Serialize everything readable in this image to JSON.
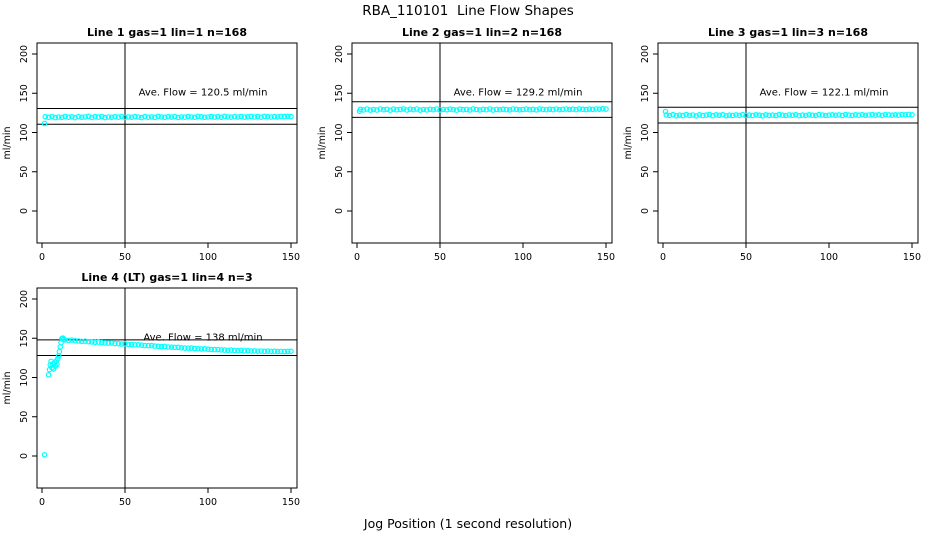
{
  "page": {
    "title": "RBA_110101  Line Flow Shapes",
    "xlabel": "Jog Position (1 second resolution)"
  },
  "colors": {
    "point": "#00ffff",
    "line": "#000000",
    "background": "#ffffff"
  },
  "axes": {
    "x_ticks": [
      0,
      50,
      100,
      150
    ],
    "y_ticks": [
      0,
      50,
      100,
      150,
      200
    ],
    "ylabel": "ml/min",
    "xlim": [
      0,
      150
    ],
    "ylim": [
      0,
      200
    ],
    "grid": false
  },
  "chart_data": [
    {
      "type": "scatter",
      "title": "Line 1 gas=1 lin=1 n=168",
      "annotation": "Ave. Flow =  120.5  ml/min",
      "avg_flow": 120.5,
      "upper_line": 130.5,
      "lower_line": 110.5,
      "vline_x": 50,
      "row": 0,
      "col": 0,
      "points": [
        [
          1.5,
          111.5
        ],
        [
          2,
          120.1
        ],
        [
          4,
          119.3
        ],
        [
          6,
          120.4
        ],
        [
          8,
          119.0
        ],
        [
          10,
          119.8
        ],
        [
          12,
          119.2
        ],
        [
          14,
          120.5
        ],
        [
          16,
          119.5
        ],
        [
          18,
          120.0
        ],
        [
          20,
          118.9
        ],
        [
          22,
          120.3
        ],
        [
          24,
          119.4
        ],
        [
          26,
          119.9
        ],
        [
          28,
          120.6
        ],
        [
          30,
          119.1
        ],
        [
          32,
          120.2
        ],
        [
          34,
          119.6
        ],
        [
          36,
          120.4
        ],
        [
          38,
          119.0
        ],
        [
          40,
          119.8
        ],
        [
          42,
          119.3
        ],
        [
          44,
          120.1
        ],
        [
          46,
          119.5
        ],
        [
          48,
          120.5
        ],
        [
          50,
          119.2
        ],
        [
          52,
          119.9
        ],
        [
          54,
          119.4
        ],
        [
          56,
          120.3
        ],
        [
          58,
          119.7
        ],
        [
          60,
          119.0
        ],
        [
          62,
          120.2
        ],
        [
          64,
          119.5
        ],
        [
          66,
          119.9
        ],
        [
          68,
          119.2
        ],
        [
          70,
          120.6
        ],
        [
          72,
          119.8
        ],
        [
          74,
          119.3
        ],
        [
          76,
          120.1
        ],
        [
          78,
          119.6
        ],
        [
          80,
          120.4
        ],
        [
          82,
          119.1
        ],
        [
          84,
          119.9
        ],
        [
          86,
          119.5
        ],
        [
          88,
          120.2
        ],
        [
          90,
          119.7
        ],
        [
          92,
          119.3
        ],
        [
          94,
          120.5
        ],
        [
          96,
          120.0
        ],
        [
          98,
          119.4
        ],
        [
          100,
          119.8
        ],
        [
          102,
          120.3
        ],
        [
          104,
          119.6
        ],
        [
          106,
          120.1
        ],
        [
          108,
          119.3
        ],
        [
          110,
          120.6
        ],
        [
          112,
          119.9
        ],
        [
          114,
          119.5
        ],
        [
          116,
          120.2
        ],
        [
          118,
          119.7
        ],
        [
          120,
          120.4
        ],
        [
          122,
          119.6
        ],
        [
          124,
          120.0
        ],
        [
          126,
          120.5
        ],
        [
          128,
          119.8
        ],
        [
          130,
          120.2
        ],
        [
          132,
          119.5
        ],
        [
          134,
          120.6
        ],
        [
          136,
          120.1
        ],
        [
          138,
          119.7
        ],
        [
          140,
          120.3
        ],
        [
          142,
          119.9
        ],
        [
          144,
          120.5
        ],
        [
          146,
          120.2
        ],
        [
          148,
          120.7
        ],
        [
          150,
          120.3
        ]
      ]
    },
    {
      "type": "scatter",
      "title": "Line 2 gas=1 lin=2 n=168",
      "annotation": "Ave. Flow =  129.2  ml/min",
      "avg_flow": 129.2,
      "upper_line": 139.2,
      "lower_line": 119.2,
      "vline_x": 50,
      "row": 0,
      "col": 1,
      "points": [
        [
          1.5,
          127.0
        ],
        [
          2,
          129.6
        ],
        [
          4,
          128.8
        ],
        [
          6,
          129.9
        ],
        [
          8,
          128.5
        ],
        [
          10,
          129.3
        ],
        [
          12,
          128.7
        ],
        [
          14,
          130.0
        ],
        [
          16,
          129.0
        ],
        [
          18,
          129.5
        ],
        [
          20,
          128.4
        ],
        [
          22,
          129.8
        ],
        [
          24,
          128.9
        ],
        [
          26,
          129.4
        ],
        [
          28,
          130.1
        ],
        [
          30,
          128.6
        ],
        [
          32,
          129.7
        ],
        [
          34,
          129.1
        ],
        [
          36,
          129.9
        ],
        [
          38,
          128.5
        ],
        [
          40,
          129.3
        ],
        [
          42,
          128.8
        ],
        [
          44,
          129.6
        ],
        [
          46,
          129.0
        ],
        [
          48,
          130.0
        ],
        [
          50,
          128.7
        ],
        [
          52,
          129.4
        ],
        [
          54,
          128.9
        ],
        [
          56,
          129.8
        ],
        [
          58,
          129.2
        ],
        [
          60,
          128.5
        ],
        [
          62,
          129.7
        ],
        [
          64,
          129.0
        ],
        [
          66,
          129.4
        ],
        [
          68,
          128.7
        ],
        [
          70,
          130.1
        ],
        [
          72,
          129.3
        ],
        [
          74,
          128.8
        ],
        [
          76,
          129.6
        ],
        [
          78,
          129.1
        ],
        [
          80,
          129.9
        ],
        [
          82,
          128.6
        ],
        [
          84,
          129.4
        ],
        [
          86,
          129.0
        ],
        [
          88,
          129.7
        ],
        [
          90,
          129.2
        ],
        [
          92,
          128.8
        ],
        [
          94,
          130.0
        ],
        [
          96,
          129.5
        ],
        [
          98,
          128.9
        ],
        [
          100,
          129.3
        ],
        [
          102,
          129.8
        ],
        [
          104,
          129.1
        ],
        [
          106,
          129.6
        ],
        [
          108,
          128.8
        ],
        [
          110,
          130.1
        ],
        [
          112,
          129.4
        ],
        [
          114,
          129.0
        ],
        [
          116,
          129.7
        ],
        [
          118,
          129.2
        ],
        [
          120,
          129.9
        ],
        [
          122,
          129.1
        ],
        [
          124,
          129.5
        ],
        [
          126,
          130.0
        ],
        [
          128,
          129.3
        ],
        [
          130,
          129.7
        ],
        [
          132,
          129.0
        ],
        [
          134,
          130.1
        ],
        [
          136,
          129.6
        ],
        [
          138,
          129.2
        ],
        [
          140,
          129.8
        ],
        [
          142,
          129.4
        ],
        [
          144,
          130.0
        ],
        [
          146,
          129.7
        ],
        [
          148,
          130.2
        ],
        [
          150,
          129.8
        ]
      ]
    },
    {
      "type": "scatter",
      "title": "Line 3 gas=1 lin=3 n=168",
      "annotation": "Ave. Flow =  122.1  ml/min",
      "avg_flow": 122.1,
      "upper_line": 132.1,
      "lower_line": 112.1,
      "vline_x": 50,
      "row": 0,
      "col": 2,
      "points": [
        [
          1.5,
          126.8
        ],
        [
          2,
          122.4
        ],
        [
          4,
          121.6
        ],
        [
          6,
          122.7
        ],
        [
          8,
          121.3
        ],
        [
          10,
          122.1
        ],
        [
          12,
          121.5
        ],
        [
          14,
          122.8
        ],
        [
          16,
          121.8
        ],
        [
          18,
          122.3
        ],
        [
          20,
          121.2
        ],
        [
          22,
          122.6
        ],
        [
          24,
          121.7
        ],
        [
          26,
          122.2
        ],
        [
          28,
          122.9
        ],
        [
          30,
          121.4
        ],
        [
          32,
          122.5
        ],
        [
          34,
          121.9
        ],
        [
          36,
          122.7
        ],
        [
          38,
          121.3
        ],
        [
          40,
          122.1
        ],
        [
          42,
          121.6
        ],
        [
          44,
          122.4
        ],
        [
          46,
          121.8
        ],
        [
          48,
          122.8
        ],
        [
          50,
          121.5
        ],
        [
          52,
          122.2
        ],
        [
          54,
          121.7
        ],
        [
          56,
          122.6
        ],
        [
          58,
          122.0
        ],
        [
          60,
          121.3
        ],
        [
          62,
          122.5
        ],
        [
          64,
          121.8
        ],
        [
          66,
          122.2
        ],
        [
          68,
          121.5
        ],
        [
          70,
          122.9
        ],
        [
          72,
          122.1
        ],
        [
          74,
          121.6
        ],
        [
          76,
          122.4
        ],
        [
          78,
          121.9
        ],
        [
          80,
          122.7
        ],
        [
          82,
          121.4
        ],
        [
          84,
          122.2
        ],
        [
          86,
          121.8
        ],
        [
          88,
          122.5
        ],
        [
          90,
          122.0
        ],
        [
          92,
          121.6
        ],
        [
          94,
          122.8
        ],
        [
          96,
          122.3
        ],
        [
          98,
          121.7
        ],
        [
          100,
          122.1
        ],
        [
          102,
          122.6
        ],
        [
          104,
          121.9
        ],
        [
          106,
          122.4
        ],
        [
          108,
          121.6
        ],
        [
          110,
          122.9
        ],
        [
          112,
          122.2
        ],
        [
          114,
          121.8
        ],
        [
          116,
          122.5
        ],
        [
          118,
          122.0
        ],
        [
          120,
          122.7
        ],
        [
          122,
          121.9
        ],
        [
          124,
          122.3
        ],
        [
          126,
          122.8
        ],
        [
          128,
          122.1
        ],
        [
          130,
          122.5
        ],
        [
          132,
          121.8
        ],
        [
          134,
          122.9
        ],
        [
          136,
          122.4
        ],
        [
          138,
          122.0
        ],
        [
          140,
          122.6
        ],
        [
          142,
          122.2
        ],
        [
          144,
          122.8
        ],
        [
          146,
          122.5
        ],
        [
          148,
          123.0
        ],
        [
          150,
          122.6
        ]
      ]
    },
    {
      "type": "scatter",
      "title": "Line 4 (LT) gas=1 lin=4 n=3",
      "annotation": "Ave. Flow =  138  ml/min",
      "avg_flow": 138,
      "upper_line": 148,
      "lower_line": 128,
      "vline_x": 50,
      "row": 1,
      "col": 0,
      "points": [
        [
          1.5,
          1.5
        ],
        [
          4,
          103.5
        ],
        [
          4.5,
          110.0
        ],
        [
          5,
          116.0
        ],
        [
          5.5,
          120.5
        ],
        [
          6,
          112.5
        ],
        [
          6.5,
          117.5
        ],
        [
          7,
          111.0
        ],
        [
          7.5,
          118.5
        ],
        [
          8,
          114.5
        ],
        [
          8.5,
          121.0
        ],
        [
          9,
          116.5
        ],
        [
          9.5,
          124.0
        ],
        [
          10,
          127.5
        ],
        [
          10.5,
          133.0
        ],
        [
          11,
          139.0
        ],
        [
          11.5,
          144.5
        ],
        [
          12,
          149.5
        ],
        [
          12.5,
          150.2
        ],
        [
          13,
          148.3
        ],
        [
          14,
          147.9
        ],
        [
          16,
          147.3
        ],
        [
          18,
          147.6
        ],
        [
          20,
          146.8
        ],
        [
          22,
          146.5
        ],
        [
          24,
          146.0
        ],
        [
          26,
          146.3
        ],
        [
          28,
          145.6
        ],
        [
          30,
          145.2
        ],
        [
          32,
          144.9
        ],
        [
          34,
          145.1
        ],
        [
          36,
          144.5
        ],
        [
          38,
          144.1
        ],
        [
          40,
          143.8
        ],
        [
          42,
          144.0
        ],
        [
          44,
          143.3
        ],
        [
          46,
          143.0
        ],
        [
          48,
          142.7
        ],
        [
          50,
          142.9
        ],
        [
          52,
          142.2
        ],
        [
          54,
          141.9
        ],
        [
          56,
          141.6
        ],
        [
          58,
          141.8
        ],
        [
          60,
          141.1
        ],
        [
          62,
          140.8
        ],
        [
          64,
          140.5
        ],
        [
          66,
          140.7
        ],
        [
          68,
          140.0
        ],
        [
          70,
          139.7
        ],
        [
          72,
          139.4
        ],
        [
          74,
          139.6
        ],
        [
          76,
          138.9
        ],
        [
          78,
          138.6
        ],
        [
          80,
          138.3
        ],
        [
          82,
          138.5
        ],
        [
          84,
          137.8
        ],
        [
          86,
          137.5
        ],
        [
          88,
          137.3
        ],
        [
          90,
          137.5
        ],
        [
          92,
          136.9
        ],
        [
          94,
          136.6
        ],
        [
          96,
          136.4
        ],
        [
          98,
          136.6
        ],
        [
          100,
          136.0
        ],
        [
          102,
          135.7
        ],
        [
          104,
          135.5
        ],
        [
          106,
          135.7
        ],
        [
          108,
          135.1
        ],
        [
          110,
          134.9
        ],
        [
          112,
          134.7
        ],
        [
          114,
          134.9
        ],
        [
          116,
          134.4
        ],
        [
          118,
          134.2
        ],
        [
          120,
          134.5
        ],
        [
          122,
          133.9
        ],
        [
          124,
          134.1
        ],
        [
          126,
          133.7
        ],
        [
          128,
          133.9
        ],
        [
          130,
          133.5
        ],
        [
          132,
          133.8
        ],
        [
          134,
          133.4
        ],
        [
          136,
          133.6
        ],
        [
          138,
          133.2
        ],
        [
          140,
          133.5
        ],
        [
          142,
          133.1
        ],
        [
          144,
          133.3
        ],
        [
          146,
          133.0
        ],
        [
          148,
          133.2
        ],
        [
          150,
          133.4
        ]
      ]
    }
  ]
}
